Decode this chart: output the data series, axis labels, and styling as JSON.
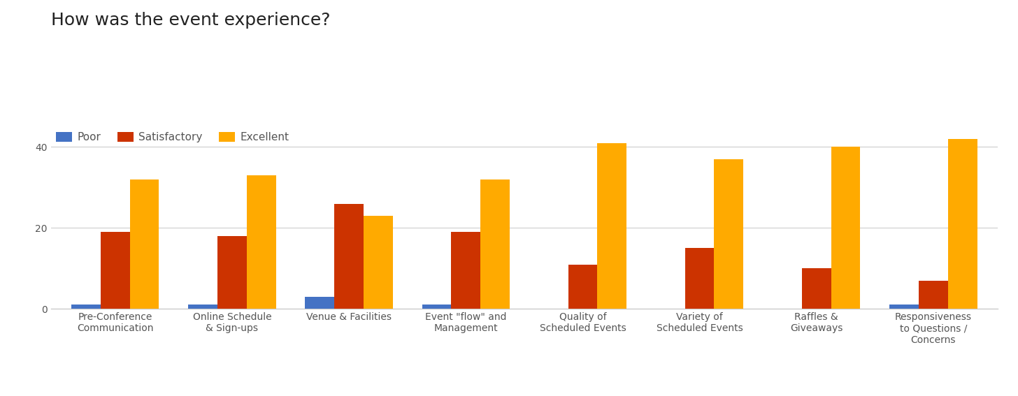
{
  "title": "How was the event experience?",
  "categories": [
    "Pre-Conference\nCommunication",
    "Online Schedule\n& Sign-ups",
    "Venue & Facilities",
    "Event \"flow\" and\nManagement",
    "Quality of\nScheduled Events",
    "Variety of\nScheduled Events",
    "Raffles &\nGiveaways",
    "Responsiveness\nto Questions /\nConcerns"
  ],
  "series": {
    "Poor": [
      1,
      1,
      3,
      1,
      0,
      0,
      0,
      1
    ],
    "Satisfactory": [
      19,
      18,
      26,
      19,
      11,
      15,
      10,
      7
    ],
    "Excellent": [
      32,
      33,
      23,
      32,
      41,
      37,
      40,
      42
    ]
  },
  "colors": {
    "Poor": "#4472c4",
    "Satisfactory": "#cc3300",
    "Excellent": "#ffaa00"
  },
  "ylim": [
    0,
    45
  ],
  "yticks": [
    0,
    20,
    40
  ],
  "background_color": "#ffffff",
  "title_fontsize": 18,
  "legend_fontsize": 11,
  "tick_fontsize": 10,
  "bar_width": 0.25
}
